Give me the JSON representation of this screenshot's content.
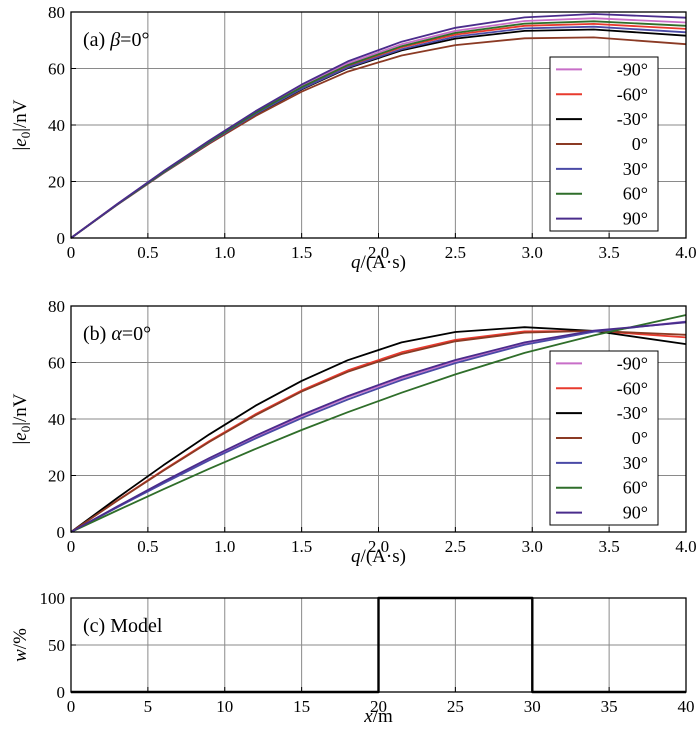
{
  "chart_data": [
    {
      "type": "line",
      "panel_label": "(a)",
      "title_var": "β",
      "title_rest": "=0°",
      "xlabel_var": "q",
      "xlabel_unit": "/(A·s)",
      "ylabel_text": "|e",
      "ylabel_sub": "0",
      "ylabel_unit": "|/nV",
      "xlim": [
        0,
        4.0
      ],
      "ylim": [
        0,
        80
      ],
      "xticks": [
        "0",
        "0.5",
        "1.0",
        "1.5",
        "2.0",
        "2.5",
        "3.0",
        "3.5",
        "4.0"
      ],
      "yticks": [
        "0",
        "20",
        "40",
        "60",
        "80"
      ],
      "grid": true,
      "legend_position": "right",
      "x": [
        0,
        0.3,
        0.6,
        0.9,
        1.2,
        1.5,
        1.8,
        2.15,
        2.5,
        2.95,
        3.4,
        4.0
      ],
      "series": [
        {
          "name": "-90°",
          "color": "#c86ec8",
          "values": [
            0,
            12.0,
            23.5,
            34.3,
            44.6,
            53.8,
            61.8,
            68.6,
            73.3,
            76.8,
            77.8,
            76.3
          ]
        },
        {
          "name": "-60°",
          "color": "#e83a2e",
          "values": [
            0,
            11.9,
            23.3,
            34.1,
            44.2,
            53.2,
            60.9,
            67.5,
            72.0,
            75.1,
            75.8,
            74.0
          ]
        },
        {
          "name": "-30°",
          "color": "#000000",
          "values": [
            0,
            11.8,
            23.1,
            33.8,
            43.8,
            52.6,
            60.1,
            66.4,
            70.6,
            73.3,
            73.8,
            71.6
          ]
        },
        {
          "name": "0°",
          "color": "#8b3a24",
          "values": [
            0,
            11.7,
            22.9,
            33.4,
            43.2,
            51.8,
            58.9,
            64.6,
            68.3,
            70.7,
            71.0,
            68.6
          ]
        },
        {
          "name": "30°",
          "color": "#4a4aa6",
          "values": [
            0,
            11.8,
            23.1,
            33.8,
            43.9,
            52.8,
            60.4,
            66.8,
            71.3,
            74.2,
            74.8,
            72.8
          ]
        },
        {
          "name": "60°",
          "color": "#2f6e2a",
          "values": [
            0,
            11.9,
            23.3,
            34.1,
            44.3,
            53.4,
            61.2,
            67.9,
            72.6,
            75.9,
            76.7,
            75.1
          ]
        },
        {
          "name": "90°",
          "color": "#4a2c8c",
          "values": [
            0,
            12.0,
            23.6,
            34.5,
            44.9,
            54.3,
            62.5,
            69.5,
            74.4,
            78.1,
            79.3,
            78.0
          ]
        }
      ]
    },
    {
      "type": "line",
      "panel_label": "(b)",
      "title_var": "α",
      "title_rest": "=0°",
      "xlabel_var": "q",
      "xlabel_unit": "/(A·s)",
      "ylabel_text": "|e",
      "ylabel_sub": "0",
      "ylabel_unit": "|/nV",
      "xlim": [
        0,
        4.0
      ],
      "ylim": [
        0,
        80
      ],
      "xticks": [
        "0",
        "0.5",
        "1.0",
        "1.5",
        "2.0",
        "2.5",
        "3.0",
        "3.5",
        "4.0"
      ],
      "yticks": [
        "0",
        "20",
        "40",
        "60",
        "80"
      ],
      "grid": true,
      "legend_position": "right",
      "x": [
        0,
        0.3,
        0.6,
        0.9,
        1.2,
        1.5,
        1.8,
        2.15,
        2.5,
        2.95,
        3.4,
        4.0
      ],
      "series": [
        {
          "name": "-90°",
          "color": "#c86ec8",
          "values": [
            0,
            8.9,
            17.5,
            25.9,
            33.7,
            41.0,
            47.7,
            54.5,
            60.5,
            66.8,
            71.0,
            74.5
          ]
        },
        {
          "name": "-60°",
          "color": "#e83a2e",
          "values": [
            0,
            11.1,
            21.9,
            32.2,
            41.7,
            50.1,
            57.2,
            63.6,
            68.0,
            71.0,
            71.2,
            68.9
          ]
        },
        {
          "name": "-30°",
          "color": "#000000",
          "values": [
            0,
            12.0,
            23.6,
            34.6,
            44.7,
            53.5,
            60.8,
            67.1,
            70.8,
            72.5,
            71.2,
            66.5
          ]
        },
        {
          "name": "0°",
          "color": "#8b3a24",
          "values": [
            0,
            11.0,
            21.7,
            31.9,
            41.3,
            49.7,
            56.7,
            63.0,
            67.5,
            70.6,
            71.2,
            69.8
          ]
        },
        {
          "name": "30°",
          "color": "#4a4aa6",
          "values": [
            0,
            8.7,
            17.2,
            25.4,
            33.1,
            40.3,
            46.9,
            53.8,
            59.8,
            66.3,
            70.9,
            74.4
          ]
        },
        {
          "name": "60°",
          "color": "#2f6e2a",
          "values": [
            0,
            7.6,
            15.1,
            22.4,
            29.4,
            36.1,
            42.4,
            49.3,
            55.8,
            63.4,
            69.6,
            76.8
          ]
        },
        {
          "name": "90°",
          "color": "#4a2c8c",
          "values": [
            0,
            9.0,
            17.8,
            26.2,
            34.1,
            41.4,
            48.1,
            55.0,
            60.9,
            67.1,
            71.3,
            74.2
          ]
        }
      ]
    },
    {
      "type": "line",
      "panel_label": "(c)",
      "title_var": "",
      "title_rest": "Model",
      "xlabel_var": "x",
      "xlabel_unit": "/m",
      "ylabel_text": "w/%",
      "xlim": [
        0,
        40
      ],
      "ylim": [
        0,
        100
      ],
      "xticks": [
        "0",
        "5",
        "10",
        "15",
        "20",
        "25",
        "30",
        "35",
        "40"
      ],
      "yticks": [
        "0",
        "50",
        "100"
      ],
      "grid": true,
      "series": [
        {
          "color": "#000000",
          "x": [
            0,
            20,
            20,
            30,
            30,
            40
          ],
          "values": [
            0,
            0,
            100,
            100,
            0,
            0
          ]
        }
      ]
    }
  ]
}
